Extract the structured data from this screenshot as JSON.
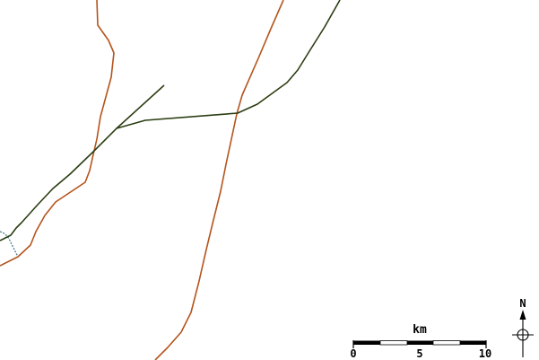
{
  "colors": {
    "background": "#ffffff",
    "road_brown": "#b5541c",
    "road_green": "#2b3d12",
    "water_blue": "#4a7f8f",
    "ink": "#000000"
  },
  "scale_bar": {
    "unit": "km",
    "ticks": [
      "0",
      "5",
      "10"
    ]
  },
  "north_arrow": {
    "label": "N",
    "icon": "north-arrow-icon"
  }
}
